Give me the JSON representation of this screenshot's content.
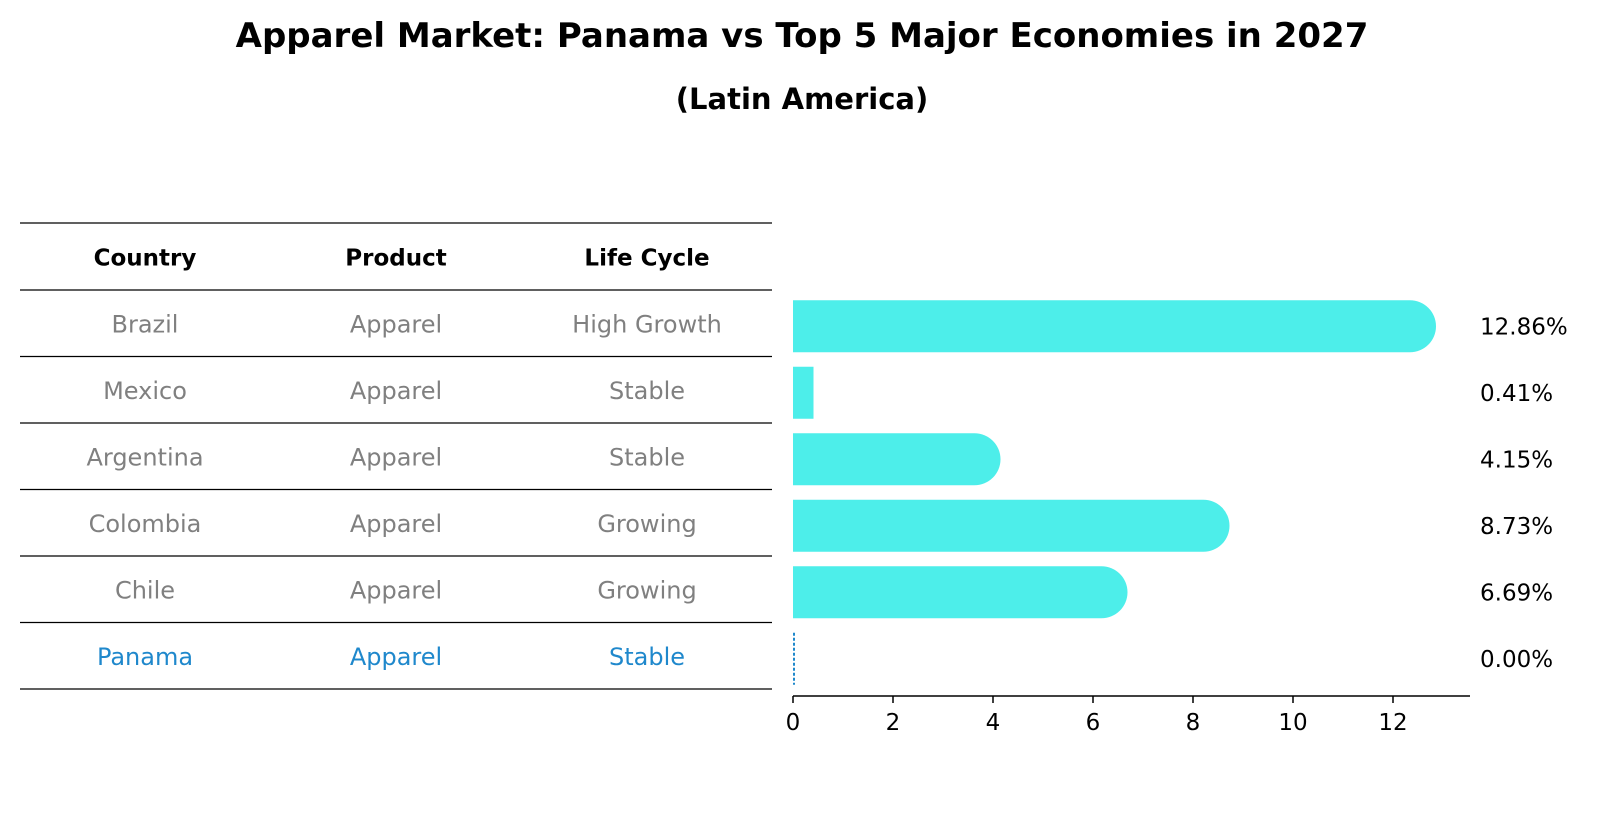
{
  "title": "Apparel Market: Panama vs Top 5 Major Economies in 2027",
  "subtitle": "(Latin America)",
  "colors": {
    "bar": "#4DEEEA",
    "highlight": "#1F88CC",
    "muted_text": "#808080",
    "line": "#000000"
  },
  "chart_data": {
    "type": "bar",
    "orientation": "horizontal",
    "title": "Apparel Market: Panama vs Top 5 Major Economies in 2027",
    "subtitle": "(Latin America)",
    "categories": [
      "Brazil",
      "Mexico",
      "Argentina",
      "Colombia",
      "Chile",
      "Panama"
    ],
    "values": [
      12.86,
      0.41,
      4.15,
      8.73,
      6.69,
      0.0
    ],
    "value_labels": [
      "12.86%",
      "0.41%",
      "4.15%",
      "8.73%",
      "6.69%",
      "0.00%"
    ],
    "xlim": [
      0,
      13.5
    ],
    "x_ticks": [
      "0",
      "2",
      "4",
      "6",
      "8",
      "10",
      "12"
    ],
    "grid": false,
    "legend": "none",
    "highlight_category": "Panama",
    "table": {
      "columns": [
        "Country",
        "Product",
        "Life Cycle"
      ],
      "rows": [
        [
          "Brazil",
          "Apparel",
          "High Growth"
        ],
        [
          "Mexico",
          "Apparel",
          "Stable"
        ],
        [
          "Argentina",
          "Apparel",
          "Stable"
        ],
        [
          "Colombia",
          "Apparel",
          "Growing"
        ],
        [
          "Chile",
          "Apparel",
          "Growing"
        ],
        [
          "Panama",
          "Apparel",
          "Stable"
        ]
      ]
    }
  }
}
